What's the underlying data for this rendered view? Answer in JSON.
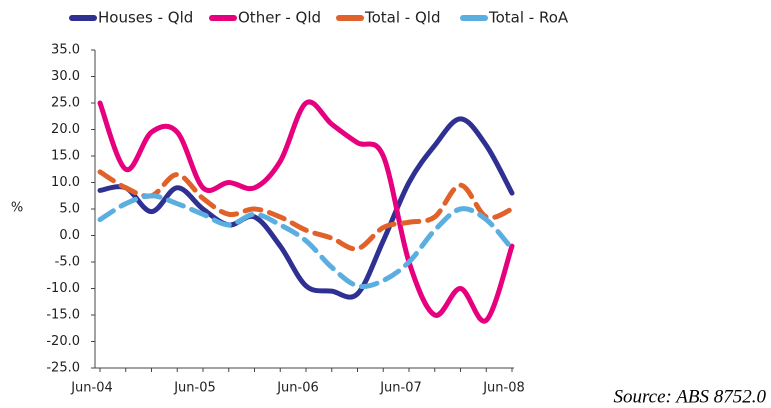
{
  "chart_data": {
    "type": "line",
    "y_label": "%",
    "source": "Source: ABS 8752.0",
    "categories": [
      "Jun-04",
      null,
      null,
      null,
      "Jun-05",
      null,
      null,
      null,
      "Jun-06",
      null,
      null,
      null,
      "Jun-07",
      null,
      null,
      null,
      "Jun-08"
    ],
    "series": [
      {
        "name": "Houses - Qld",
        "color": "#2e3192",
        "dash": false,
        "values": [
          8.5,
          9,
          4.5,
          9,
          5,
          2,
          3.5,
          -2,
          -9.5,
          -10.5,
          -11,
          -1,
          10,
          17,
          22,
          17,
          8
        ]
      },
      {
        "name": "Other - Qld",
        "color": "#e6007e",
        "dash": false,
        "values": [
          25,
          12.5,
          19.5,
          19.5,
          9,
          10,
          9,
          14,
          25,
          21,
          17.5,
          15,
          -5,
          -15,
          -10,
          -16,
          -2
        ]
      },
      {
        "name": "Total - Qld",
        "color": "#e0622a",
        "dash": true,
        "values": [
          12,
          9,
          7.5,
          11.5,
          7,
          4,
          5,
          3.5,
          1,
          -0.5,
          -2.5,
          1.5,
          2.5,
          3.5,
          9.5,
          3.5,
          5
        ]
      },
      {
        "name": "Total - RoA",
        "color": "#5aaee0",
        "dash": true,
        "values": [
          3,
          6,
          7.5,
          6,
          4,
          2,
          4,
          2,
          -1,
          -6,
          -9.5,
          -8.5,
          -5,
          1,
          5,
          3,
          -2.5
        ]
      }
    ],
    "ylim": [
      -25,
      35
    ],
    "yticks": [
      {
        "value": -25,
        "label": "-25.0"
      },
      {
        "value": -20,
        "label": "-20.0"
      },
      {
        "value": -15,
        "label": "-15.0"
      },
      {
        "value": -10,
        "label": "-10.0"
      },
      {
        "value": -5,
        "label": "-5.0"
      },
      {
        "value": 0,
        "label": "0.0"
      },
      {
        "value": 5,
        "label": "5.0"
      },
      {
        "value": 10,
        "label": "10.0"
      },
      {
        "value": 15,
        "label": "15.0"
      },
      {
        "value": 20,
        "label": "20.0"
      },
      {
        "value": 25,
        "label": "25.0"
      },
      {
        "value": 30,
        "label": "30.0"
      },
      {
        "value": 35,
        "label": "35.0"
      }
    ],
    "grid": false
  }
}
